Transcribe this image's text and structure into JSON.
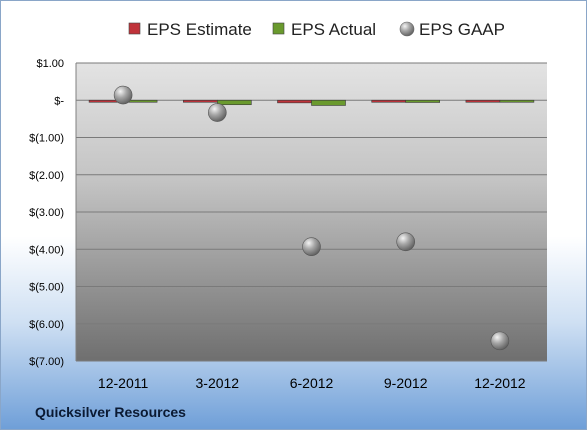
{
  "company": "Quicksilver Resources",
  "chart_data": {
    "type": "bar",
    "categories": [
      "12-2011",
      "3-2012",
      "6-2012",
      "9-2012",
      "12-2012"
    ],
    "series": [
      {
        "name": "EPS Estimate",
        "kind": "bar",
        "color": "#c0333a",
        "values": [
          0.0,
          -0.04,
          -0.07,
          -0.02,
          -0.01
        ]
      },
      {
        "name": "EPS Actual",
        "kind": "bar",
        "color": "#6a9a2e",
        "values": [
          0.0,
          -0.12,
          -0.14,
          -0.06,
          -0.04
        ]
      },
      {
        "name": "EPS GAAP",
        "kind": "marker",
        "color": "#9a9a9a",
        "values": [
          0.14,
          -0.33,
          -3.93,
          -3.8,
          -6.46
        ]
      }
    ],
    "ylim": [
      -7,
      1
    ],
    "ytick_values": [
      1,
      0,
      -1,
      -2,
      -3,
      -4,
      -5,
      -6,
      -7
    ],
    "ytick_labels": [
      "$1.00",
      "$-",
      "$(1.00)",
      "$(2.00)",
      "$(3.00)",
      "$(4.00)",
      "$(5.00)",
      "$(6.00)",
      "$(7.00)"
    ],
    "grid": true,
    "legend": "top"
  }
}
